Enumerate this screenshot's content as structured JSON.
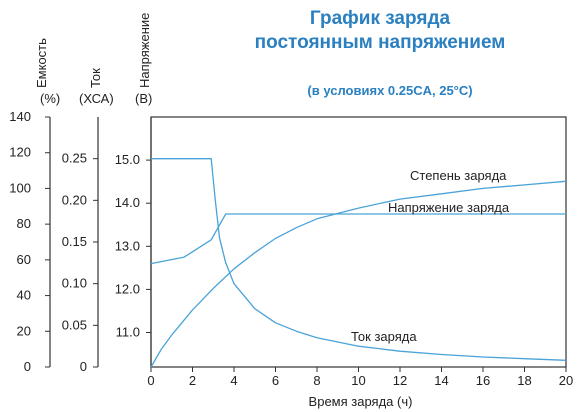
{
  "chart_data": {
    "type": "line",
    "title_line1": "График заряда",
    "title_line2": "постоянным напряжением",
    "subtitle": "(в условиях 0.25CA, 25°C)",
    "xlabel": "Время заряда (ч)",
    "xlim": [
      0,
      20
    ],
    "x_ticks": [
      "0",
      "2",
      "4",
      "6",
      "8",
      "10",
      "12",
      "14",
      "16",
      "18",
      "20"
    ],
    "axes": {
      "capacity": {
        "label": "Емкость",
        "unit": "(%)",
        "range": [
          0,
          140
        ],
        "ticks": [
          "0",
          "20",
          "40",
          "60",
          "80",
          "100",
          "120",
          "140"
        ]
      },
      "current": {
        "label": "Ток",
        "unit": "(ХСА)",
        "range": [
          0,
          0.3
        ],
        "ticks": [
          "0",
          "0.05",
          "0.10",
          "0.15",
          "0.20",
          "0.25"
        ]
      },
      "voltage": {
        "label": "Напряжение",
        "unit": "(В)",
        "range": [
          10.2,
          16.0
        ],
        "ticks": [
          "11.0",
          "12.0",
          "13.0",
          "14.0",
          "15.0"
        ]
      }
    },
    "series": [
      {
        "name": "Степень заряда",
        "axis": "capacity",
        "color": "#4aa3d8",
        "x": [
          0,
          0.5,
          1,
          2,
          3,
          4,
          5,
          6,
          7,
          8,
          10,
          12,
          14,
          16,
          18,
          20
        ],
        "y": [
          0,
          10,
          18,
          32,
          44,
          55,
          64,
          72,
          78,
          83,
          89,
          94,
          97,
          100,
          102,
          104
        ]
      },
      {
        "name": "Напряжение заряда",
        "axis": "voltage",
        "color": "#4aa3d8",
        "x": [
          0,
          1.6,
          2.9,
          3.6,
          4,
          6,
          8,
          10,
          12,
          14,
          16,
          18,
          20
        ],
        "y": [
          12.6,
          12.75,
          13.15,
          13.75,
          13.75,
          13.75,
          13.75,
          13.75,
          13.75,
          13.75,
          13.75,
          13.75,
          13.75
        ]
      },
      {
        "name": "Ток заряда",
        "axis": "current",
        "color": "#4aa3d8",
        "x": [
          0,
          2.9,
          3.1,
          3.3,
          3.6,
          4,
          5,
          6,
          7,
          8,
          10,
          12,
          14,
          16,
          18,
          20
        ],
        "y": [
          0.25,
          0.25,
          0.2,
          0.155,
          0.125,
          0.1,
          0.07,
          0.053,
          0.043,
          0.035,
          0.025,
          0.019,
          0.015,
          0.012,
          0.01,
          0.008
        ]
      }
    ]
  }
}
